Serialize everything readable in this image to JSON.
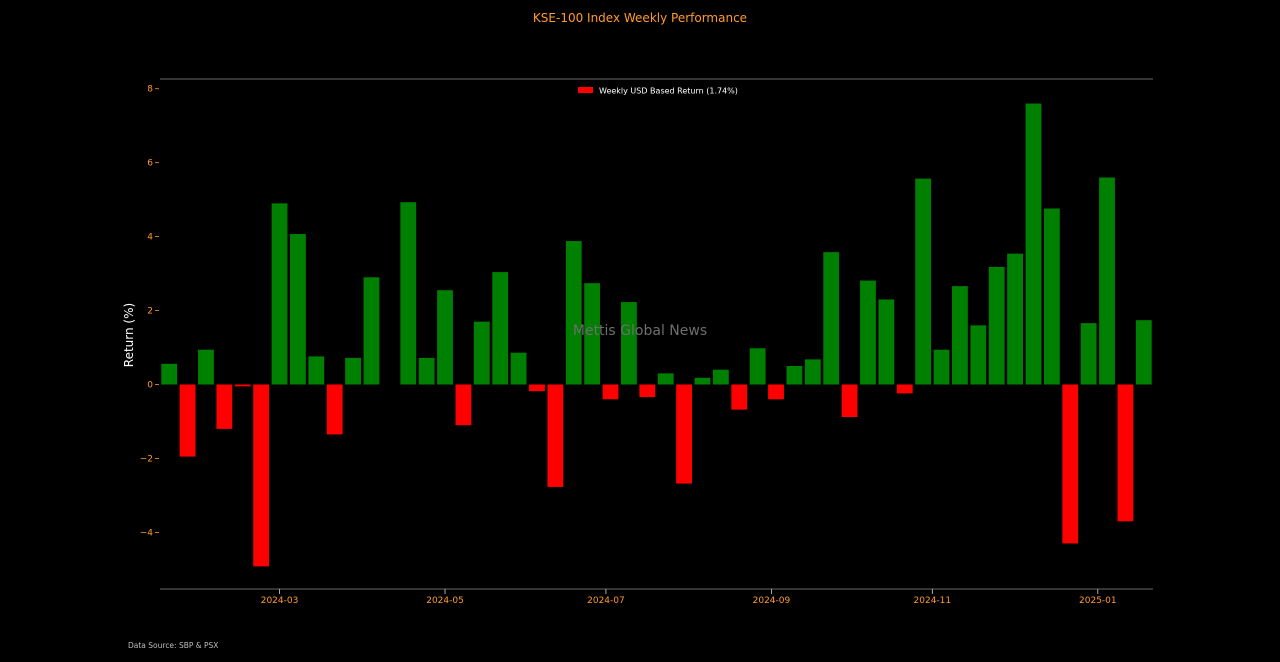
{
  "chart_data": {
    "type": "bar",
    "title": "KSE-100 Index Weekly Performance",
    "ylabel": "Return (%)",
    "xlabel": "",
    "ylim": [
      -5.5,
      8.2
    ],
    "y_ticks": [
      -4,
      -2,
      0,
      2,
      4,
      6,
      8
    ],
    "x_tick_labels": [
      "2024-03",
      "2024-05",
      "2024-07",
      "2024-09",
      "2024-11",
      "2025-01"
    ],
    "x_tick_positions": [
      6.5,
      15.5,
      24.25,
      33.25,
      42,
      51
    ],
    "legend": {
      "label": "Weekly USD Based Return (1.74%)",
      "placement": "top-center"
    },
    "watermark": "Mettis Global News",
    "source": "Data Source: SBP & PSX",
    "positive_color": "#008000",
    "negative_color": "#ff0000",
    "axis_color": "#ff9a2e",
    "grid": false,
    "values": [
      0.56,
      -1.95,
      0.94,
      -1.2,
      -0.05,
      -4.92,
      4.9,
      4.07,
      0.76,
      -1.35,
      0.72,
      2.9,
      0,
      4.93,
      0.72,
      2.55,
      -1.1,
      1.7,
      3.04,
      0.86,
      -0.18,
      -2.77,
      3.88,
      2.74,
      -0.4,
      2.23,
      -0.34,
      0.3,
      -2.68,
      0.18,
      0.4,
      -0.68,
      0.98,
      -0.4,
      0.5,
      0.68,
      3.58,
      -0.88,
      2.81,
      2.3,
      -0.24,
      5.57,
      0.94,
      2.66,
      1.6,
      3.18,
      3.54,
      7.6,
      4.76,
      -4.3,
      1.66,
      5.6,
      -3.7,
      1.74
    ]
  }
}
